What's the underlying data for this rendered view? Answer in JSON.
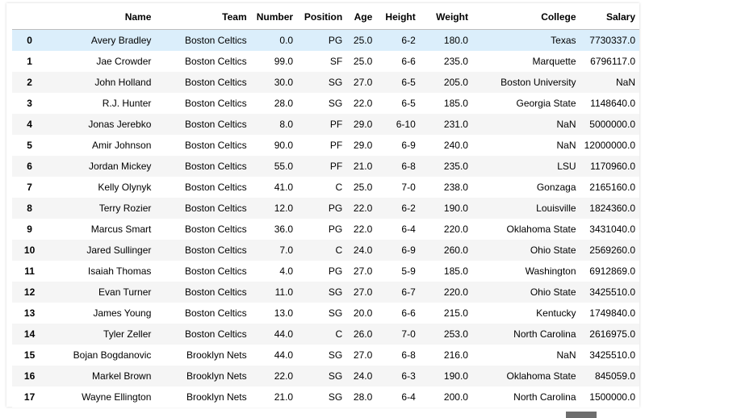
{
  "table": {
    "columns": [
      "",
      "Name",
      "Team",
      "Number",
      "Position",
      "Age",
      "Height",
      "Weight",
      "College",
      "Salary"
    ],
    "rows": [
      [
        "0",
        "Avery Bradley",
        "Boston Celtics",
        "0.0",
        "PG",
        "25.0",
        "6-2",
        "180.0",
        "Texas",
        "7730337.0"
      ],
      [
        "1",
        "Jae Crowder",
        "Boston Celtics",
        "99.0",
        "SF",
        "25.0",
        "6-6",
        "235.0",
        "Marquette",
        "6796117.0"
      ],
      [
        "2",
        "John Holland",
        "Boston Celtics",
        "30.0",
        "SG",
        "27.0",
        "6-5",
        "205.0",
        "Boston University",
        "NaN"
      ],
      [
        "3",
        "R.J. Hunter",
        "Boston Celtics",
        "28.0",
        "SG",
        "22.0",
        "6-5",
        "185.0",
        "Georgia State",
        "1148640.0"
      ],
      [
        "4",
        "Jonas Jerebko",
        "Boston Celtics",
        "8.0",
        "PF",
        "29.0",
        "6-10",
        "231.0",
        "NaN",
        "5000000.0"
      ],
      [
        "5",
        "Amir Johnson",
        "Boston Celtics",
        "90.0",
        "PF",
        "29.0",
        "6-9",
        "240.0",
        "NaN",
        "12000000.0"
      ],
      [
        "6",
        "Jordan Mickey",
        "Boston Celtics",
        "55.0",
        "PF",
        "21.0",
        "6-8",
        "235.0",
        "LSU",
        "1170960.0"
      ],
      [
        "7",
        "Kelly Olynyk",
        "Boston Celtics",
        "41.0",
        "C",
        "25.0",
        "7-0",
        "238.0",
        "Gonzaga",
        "2165160.0"
      ],
      [
        "8",
        "Terry Rozier",
        "Boston Celtics",
        "12.0",
        "PG",
        "22.0",
        "6-2",
        "190.0",
        "Louisville",
        "1824360.0"
      ],
      [
        "9",
        "Marcus Smart",
        "Boston Celtics",
        "36.0",
        "PG",
        "22.0",
        "6-4",
        "220.0",
        "Oklahoma State",
        "3431040.0"
      ],
      [
        "10",
        "Jared Sullinger",
        "Boston Celtics",
        "7.0",
        "C",
        "24.0",
        "6-9",
        "260.0",
        "Ohio State",
        "2569260.0"
      ],
      [
        "11",
        "Isaiah Thomas",
        "Boston Celtics",
        "4.0",
        "PG",
        "27.0",
        "5-9",
        "185.0",
        "Washington",
        "6912869.0"
      ],
      [
        "12",
        "Evan Turner",
        "Boston Celtics",
        "11.0",
        "SG",
        "27.0",
        "6-7",
        "220.0",
        "Ohio State",
        "3425510.0"
      ],
      [
        "13",
        "James Young",
        "Boston Celtics",
        "13.0",
        "SG",
        "20.0",
        "6-6",
        "215.0",
        "Kentucky",
        "1749840.0"
      ],
      [
        "14",
        "Tyler Zeller",
        "Boston Celtics",
        "44.0",
        "C",
        "26.0",
        "7-0",
        "253.0",
        "North Carolina",
        "2616975.0"
      ],
      [
        "15",
        "Bojan Bogdanovic",
        "Brooklyn Nets",
        "44.0",
        "SG",
        "27.0",
        "6-8",
        "216.0",
        "NaN",
        "3425510.0"
      ],
      [
        "16",
        "Markel Brown",
        "Brooklyn Nets",
        "22.0",
        "SG",
        "24.0",
        "6-3",
        "190.0",
        "Oklahoma State",
        "845059.0"
      ],
      [
        "17",
        "Wayne Ellington",
        "Brooklyn Nets",
        "21.0",
        "SG",
        "28.0",
        "6-4",
        "200.0",
        "North Carolina",
        "1500000.0"
      ]
    ],
    "highlighted_row": 0
  },
  "colors": {
    "row_striped": "#f5f5f5",
    "row_hover": "#dbeefb",
    "header_border": "#bdbdbd"
  }
}
